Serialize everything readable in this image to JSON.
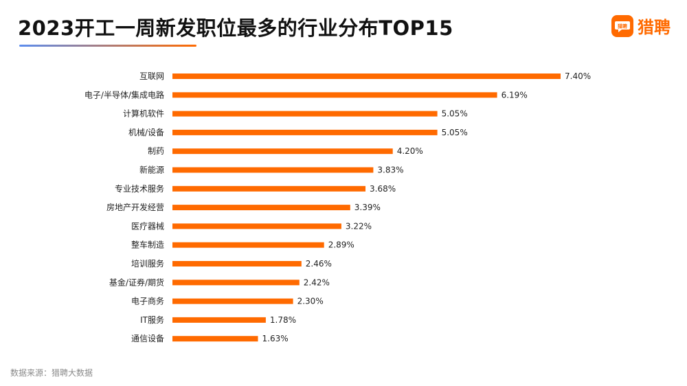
{
  "title": "2023开工一周新发职位最多的行业分布TOP15",
  "brand": {
    "logo_text": "猎聘",
    "name": "猎聘",
    "icon": "chat-bubble-icon"
  },
  "source": "数据来源：猎聘大数据",
  "colors": {
    "bar": "#ff6a00",
    "brand": "#ff6a00",
    "underline_start": "#5b8def",
    "underline_end": "#ff6a00",
    "title": "#111111",
    "label": "#222222"
  },
  "chart_data": {
    "type": "bar",
    "orientation": "horizontal",
    "categories": [
      "互联网",
      "电子/半导体/集成电路",
      "计算机软件",
      "机械/设备",
      "制药",
      "新能源",
      "专业技术服务",
      "房地产开发经营",
      "医疗器械",
      "整车制造",
      "培训服务",
      "基金/证券/期货",
      "电子商务",
      "IT服务",
      "通信设备"
    ],
    "values": [
      7.4,
      6.19,
      5.05,
      5.05,
      4.2,
      3.83,
      3.68,
      3.39,
      3.22,
      2.89,
      2.46,
      2.42,
      2.3,
      1.78,
      1.63
    ],
    "value_labels": [
      "7.40%",
      "6.19%",
      "5.05%",
      "5.05%",
      "4.20%",
      "3.83%",
      "3.68%",
      "3.39%",
      "3.22%",
      "2.89%",
      "2.46%",
      "2.42%",
      "2.30%",
      "1.78%",
      "1.63%"
    ],
    "unit": "%",
    "xlim": [
      0,
      7.4
    ],
    "grid": false,
    "legend": "none"
  }
}
